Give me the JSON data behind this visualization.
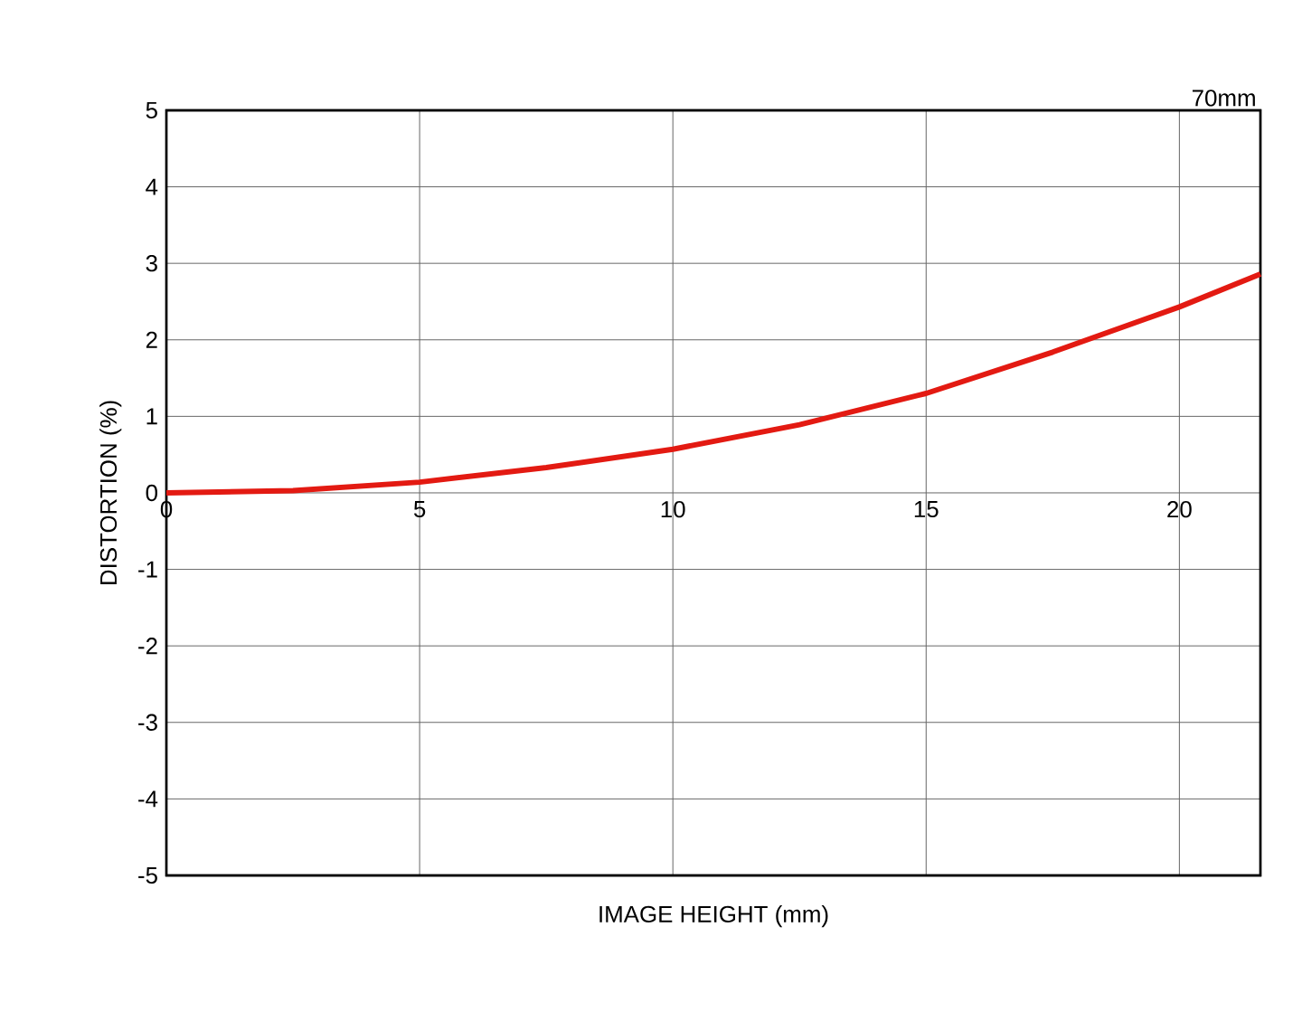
{
  "chart_data": {
    "type": "line",
    "xlabel": "IMAGE HEIGHT (mm)",
    "ylabel": "DISTORTION (%)",
    "annotations": [
      "70mm"
    ],
    "x": [
      0,
      2.5,
      5,
      7.5,
      10,
      12.5,
      15,
      17.5,
      20,
      21.6
    ],
    "series": [
      {
        "color": "#e31a12",
        "values": [
          0,
          0.03,
          0.14,
          0.33,
          0.57,
          0.89,
          1.3,
          1.84,
          2.43,
          2.86
        ]
      }
    ],
    "xlim": [
      0,
      21.6
    ],
    "ylim": [
      -5,
      5
    ],
    "xticks": [
      0,
      5,
      10,
      15,
      20
    ],
    "yticks": [
      -5,
      -4,
      -3,
      -2,
      -1,
      0,
      1,
      2,
      3,
      4,
      5
    ],
    "grid": true,
    "marker": "none",
    "line_style": "solid"
  }
}
